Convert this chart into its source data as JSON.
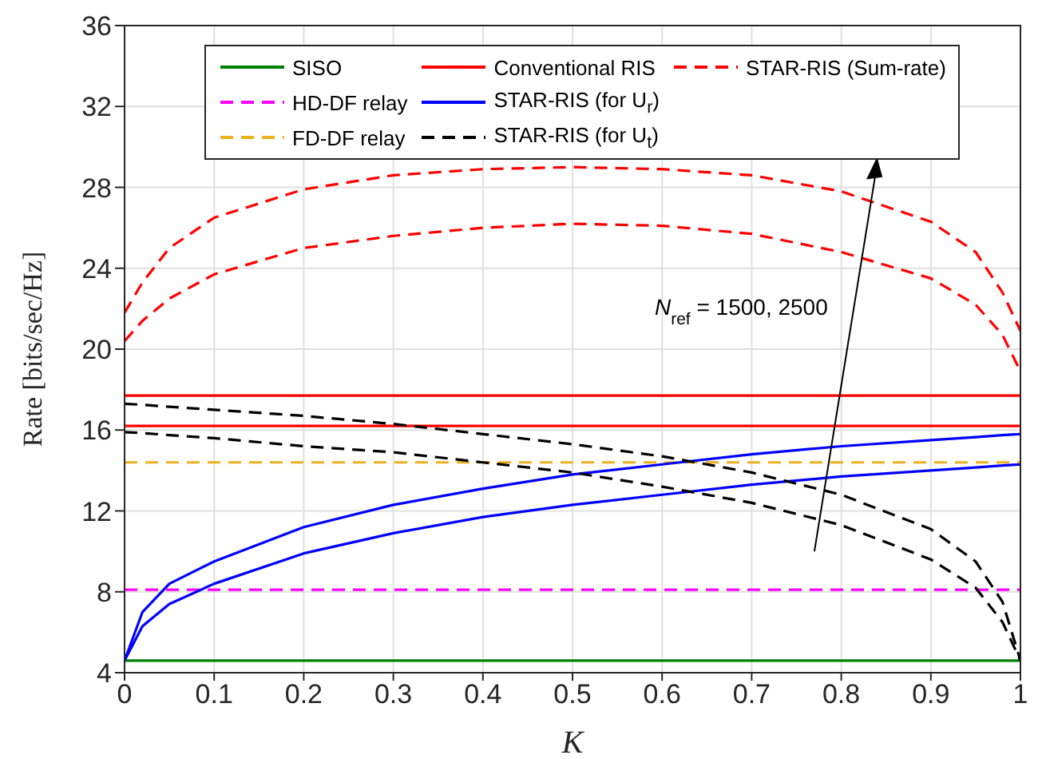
{
  "chart_data": {
    "type": "line",
    "xlabel": "K",
    "ylabel": "Rate [bits/sec/Hz]",
    "x": [
      0,
      0.02,
      0.05,
      0.1,
      0.2,
      0.3,
      0.4,
      0.5,
      0.6,
      0.7,
      0.8,
      0.9,
      0.95,
      0.98,
      1
    ],
    "xlim": [
      0,
      1
    ],
    "xticks": [
      0,
      0.1,
      0.2,
      0.3,
      0.4,
      0.5,
      0.6,
      0.7,
      0.8,
      0.9,
      1
    ],
    "ylim": [
      4,
      36
    ],
    "yticks": [
      4,
      8,
      12,
      16,
      20,
      24,
      28,
      32,
      36
    ],
    "grid": true,
    "legend": "top",
    "marker": "none",
    "annotations": [
      "N$_{ref}$ = 1500, 2500"
    ],
    "series": [
      {
        "name": "SISO",
        "color": "#008000",
        "line_style": "solid",
        "values": [
          4.6,
          4.6,
          4.6,
          4.6,
          4.6,
          4.6,
          4.6,
          4.6,
          4.6,
          4.6,
          4.6,
          4.6,
          4.6,
          4.6,
          4.6
        ]
      },
      {
        "name": "HD-DF relay",
        "color": "#ff00ff",
        "line_style": "dashed",
        "values": [
          8.1,
          8.1,
          8.1,
          8.1,
          8.1,
          8.1,
          8.1,
          8.1,
          8.1,
          8.1,
          8.1,
          8.1,
          8.1,
          8.1,
          8.1
        ]
      },
      {
        "name": "FD-DF relay",
        "color": "#edb120",
        "line_style": "dashed",
        "values": [
          14.4,
          14.4,
          14.4,
          14.4,
          14.4,
          14.4,
          14.4,
          14.4,
          14.4,
          14.4,
          14.4,
          14.4,
          14.4,
          14.4,
          14.4
        ]
      },
      {
        "name": "Conventional RIS",
        "color": "#ff0000",
        "line_style": "solid",
        "values": [
          17.7,
          17.7,
          17.7,
          17.7,
          17.7,
          17.7,
          17.7,
          17.7,
          17.7,
          17.7,
          17.7,
          17.7,
          17.7,
          17.7,
          17.7
        ]
      },
      {
        "color": "#ff0000",
        "line_style": "solid",
        "values": [
          16.2,
          16.2,
          16.2,
          16.2,
          16.2,
          16.2,
          16.2,
          16.2,
          16.2,
          16.2,
          16.2,
          16.2,
          16.2,
          16.2,
          16.2
        ]
      },
      {
        "name": "STAR-RIS (for U$_{r}$)",
        "color": "#0000ff",
        "line_style": "solid",
        "values": [
          4.6,
          7,
          8.4,
          9.5,
          11.2,
          12.3,
          13.1,
          13.8,
          14.3,
          14.8,
          15.2,
          15.5,
          15.65,
          15.75,
          15.8
        ]
      },
      {
        "color": "#0000ff",
        "line_style": "solid",
        "values": [
          4.6,
          6.3,
          7.4,
          8.4,
          9.9,
          10.9,
          11.7,
          12.3,
          12.8,
          13.3,
          13.7,
          14.0,
          14.15,
          14.25,
          14.3
        ]
      },
      {
        "name": "STAR-RIS (for U$_{t}$)",
        "color": "#000000",
        "line_style": "dashed",
        "values": [
          17.3,
          17.25,
          17.15,
          17.0,
          16.7,
          16.3,
          15.8,
          15.3,
          14.7,
          13.9,
          12.8,
          11.1,
          9.5,
          7.5,
          4.6
        ]
      },
      {
        "color": "#000000",
        "line_style": "dashed",
        "values": [
          15.9,
          15.85,
          15.75,
          15.6,
          15.2,
          14.9,
          14.4,
          13.9,
          13.2,
          12.4,
          11.3,
          9.6,
          8.2,
          6.5,
          4.6
        ]
      },
      {
        "name": "STAR-RIS (Sum-rate)",
        "color": "#ff0000",
        "line_style": "dashed",
        "values": [
          21.8,
          23.3,
          25,
          26.5,
          27.9,
          28.6,
          28.9,
          29.0,
          28.9,
          28.6,
          27.8,
          26.3,
          24.8,
          22.8,
          20.9
        ]
      },
      {
        "color": "#ff0000",
        "line_style": "dashed",
        "values": [
          20.4,
          21.4,
          22.5,
          23.7,
          25,
          25.6,
          26,
          26.2,
          26.1,
          25.7,
          24.8,
          23.5,
          22.2,
          20.7,
          18.9
        ]
      }
    ]
  }
}
